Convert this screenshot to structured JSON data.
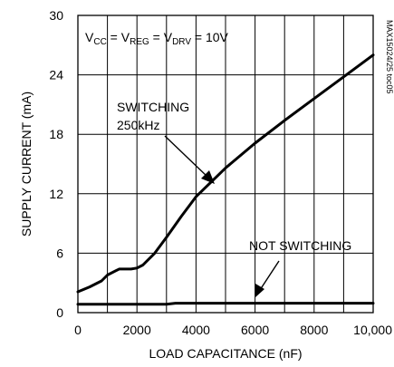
{
  "chart_data": {
    "type": "line",
    "title": "",
    "xlabel": "LOAD CAPACITANCE (nF)",
    "ylabel": "SUPPLY CURRENT (mA)",
    "xlim": [
      0,
      10000
    ],
    "ylim": [
      0,
      30
    ],
    "x_ticks": [
      0,
      2000,
      4000,
      6000,
      8000,
      10000
    ],
    "x_tick_labels": [
      "0",
      "2000",
      "4000",
      "6000",
      "8000",
      "10,000"
    ],
    "y_ticks": [
      0,
      6,
      12,
      18,
      24,
      30
    ],
    "y_tick_labels": [
      "0",
      "6",
      "12",
      "18",
      "24",
      "30"
    ],
    "grid": true,
    "condition": {
      "parts": [
        {
          "t": "V",
          "s": false
        },
        {
          "t": "CC",
          "s": true
        },
        {
          "t": " = V",
          "s": false
        },
        {
          "t": "REG",
          "s": true
        },
        {
          "t": " = V",
          "s": false
        },
        {
          "t": "DRV",
          "s": true
        },
        {
          "t": " = 10V",
          "s": false
        }
      ]
    },
    "side_label": "MAX15024/25 toc05",
    "series": [
      {
        "label_lines": [
          "SWITCHING",
          "250kHz"
        ],
        "x": [
          0,
          400,
          800,
          1000,
          1400,
          1800,
          2000,
          2200,
          2600,
          3000,
          3500,
          4000,
          5000,
          6000,
          7000,
          8000,
          9000,
          10000
        ],
        "y": [
          2.1,
          2.6,
          3.2,
          3.8,
          4.4,
          4.4,
          4.5,
          4.8,
          6.0,
          7.6,
          9.7,
          11.7,
          14.6,
          17.1,
          19.4,
          21.6,
          23.8,
          26.0
        ]
      },
      {
        "label_lines": [
          "NOT SWITCHING"
        ],
        "x": [
          0,
          1000,
          2000,
          3000,
          3300,
          4000,
          6000,
          8000,
          10000
        ],
        "y": [
          0.85,
          0.85,
          0.85,
          0.85,
          0.95,
          0.95,
          0.95,
          0.95,
          0.95
        ]
      }
    ]
  }
}
